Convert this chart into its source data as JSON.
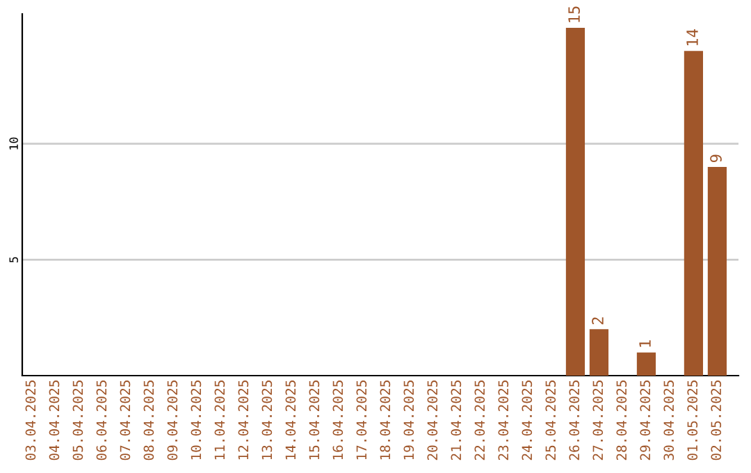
{
  "chart_data": {
    "type": "bar",
    "categories": [
      "03.04.2025",
      "04.04.2025",
      "05.04.2025",
      "06.04.2025",
      "07.04.2025",
      "08.04.2025",
      "09.04.2025",
      "10.04.2025",
      "11.04.2025",
      "12.04.2025",
      "13.04.2025",
      "14.04.2025",
      "15.04.2025",
      "16.04.2025",
      "17.04.2025",
      "18.04.2025",
      "19.04.2025",
      "20.04.2025",
      "21.04.2025",
      "22.04.2025",
      "23.04.2025",
      "24.04.2025",
      "25.04.2025",
      "26.04.2025",
      "27.04.2025",
      "28.04.2025",
      "29.04.2025",
      "30.04.2025",
      "01.05.2025",
      "02.05.2025"
    ],
    "values": [
      0,
      0,
      0,
      0,
      0,
      0,
      0,
      0,
      0,
      0,
      0,
      0,
      0,
      0,
      0,
      0,
      0,
      0,
      0,
      0,
      0,
      0,
      0,
      15,
      2,
      0,
      1,
      0,
      14,
      9
    ],
    "value_labels": [
      null,
      null,
      null,
      null,
      null,
      null,
      null,
      null,
      null,
      null,
      null,
      null,
      null,
      null,
      null,
      null,
      null,
      null,
      null,
      null,
      null,
      null,
      null,
      "15",
      "2",
      null,
      "1",
      null,
      "14",
      "9"
    ],
    "color": "#a0562a",
    "ylim": [
      0,
      15.6
    ],
    "yticks": [
      5,
      10
    ],
    "grid": "y"
  }
}
